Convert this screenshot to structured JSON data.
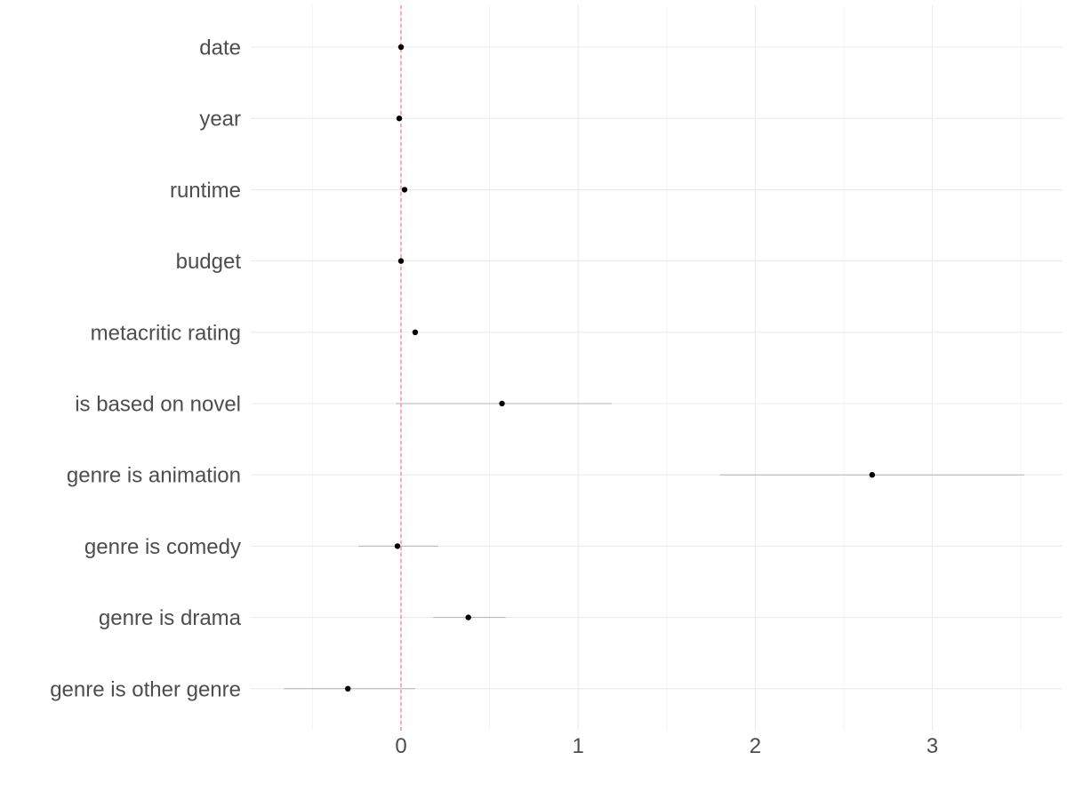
{
  "chart_data": {
    "type": "scatter",
    "title": "",
    "xlabel": "",
    "ylabel": "",
    "xlim": [
      -0.85,
      3.72
    ],
    "x_ticks": [
      0,
      1,
      2,
      3
    ],
    "x_tick_labels": [
      "0",
      "1",
      "2",
      "3"
    ],
    "minor_x_ticks": [
      -0.5,
      0.5,
      1.5,
      2.5,
      3.5
    ],
    "reference_line": {
      "x": 0,
      "color": "#ff5a5a",
      "style": "dashed"
    },
    "grid": true,
    "point_color": "#000000",
    "interval_color": "#b3b3b3",
    "rows": [
      {
        "label": "date",
        "estimate": 0.0,
        "low": 0.0,
        "high": 0.0
      },
      {
        "label": "year",
        "estimate": -0.01,
        "low": -0.01,
        "high": -0.01
      },
      {
        "label": "runtime",
        "estimate": 0.02,
        "low": 0.02,
        "high": 0.02
      },
      {
        "label": "budget",
        "estimate": 0.0,
        "low": 0.0,
        "high": 0.0
      },
      {
        "label": "metacritic rating",
        "estimate": 0.08,
        "low": 0.08,
        "high": 0.08
      },
      {
        "label": "is based on novel",
        "estimate": 0.57,
        "low": -0.03,
        "high": 1.19
      },
      {
        "label": "genre is animation",
        "estimate": 2.66,
        "low": 1.8,
        "high": 3.52
      },
      {
        "label": "genre is comedy",
        "estimate": -0.02,
        "low": -0.24,
        "high": 0.21
      },
      {
        "label": "genre is drama",
        "estimate": 0.38,
        "low": 0.18,
        "high": 0.59
      },
      {
        "label": "genre is other genre",
        "estimate": -0.3,
        "low": -0.66,
        "high": 0.08
      }
    ]
  }
}
